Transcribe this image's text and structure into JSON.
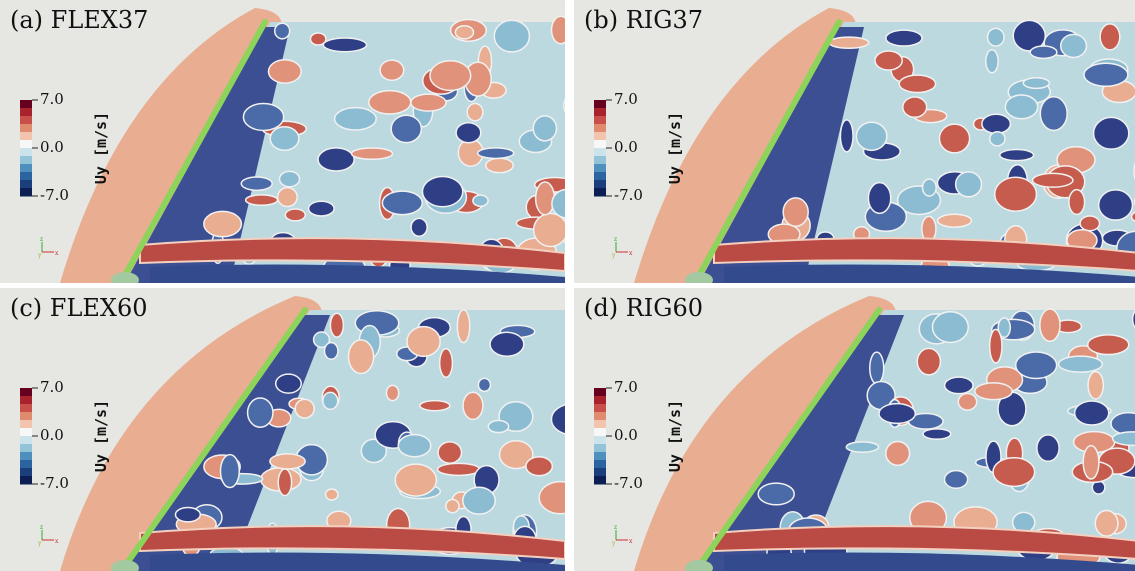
{
  "panels": [
    {
      "label": "(a) FLEX37",
      "colorbar": {
        "title": "Uy [m/s]",
        "ticks": [
          "7.0",
          "0.0",
          "-7.0"
        ]
      },
      "axes": [
        "z",
        "y",
        "x"
      ]
    },
    {
      "label": "(b) RIG37",
      "colorbar": {
        "title": "Uy [m/s]",
        "ticks": [
          "7.0",
          "0.0",
          "-7.0"
        ]
      },
      "axes": [
        "z",
        "y",
        "x"
      ]
    },
    {
      "label": "(c) FLEX60",
      "colorbar": {
        "title": "Uy [m/s]",
        "ticks": [
          "7.0",
          "0.0",
          "-7.0"
        ]
      },
      "axes": [
        "z",
        "y",
        "x"
      ]
    },
    {
      "label": "(d) RIG60",
      "colorbar": {
        "title": "Uy [m/s]",
        "ticks": [
          "7.0",
          "0.0",
          "-7.0"
        ]
      },
      "axes": [
        "z",
        "y",
        "x"
      ]
    }
  ]
}
